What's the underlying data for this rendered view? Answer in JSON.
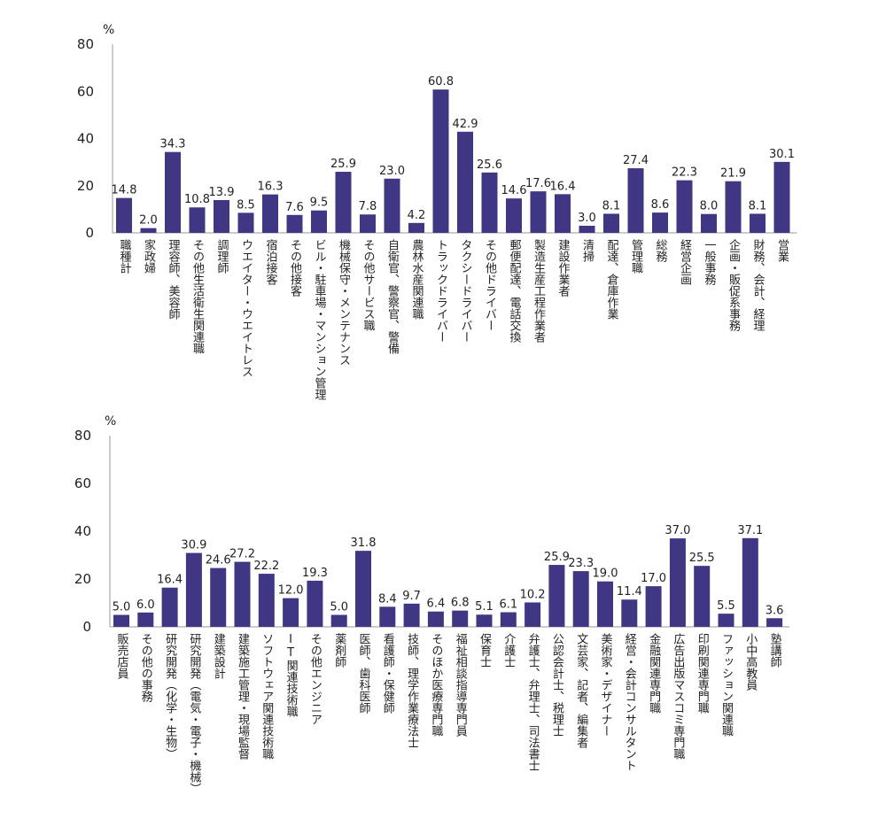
{
  "colors": {
    "bar": "#3f3783",
    "axis": "#9a9a9a",
    "text": "#222222"
  },
  "chart_data": [
    {
      "type": "bar",
      "unit_label": "%",
      "ylim": [
        0,
        80
      ],
      "yticks": [
        "0",
        "20",
        "40",
        "60",
        "80"
      ],
      "grid": false,
      "categories": [
        "職種計",
        "家政婦",
        "理容師、美容師",
        "その他生活衛生関連職",
        "調理師",
        "ウエイター・ウエイトレス",
        "宿泊接客",
        "その他接客",
        "ビル・駐車場・マンション管理",
        "機械保守・メンテナンス",
        "その他サービス職",
        "自衛官、警察官、警備",
        "農林水産関連職",
        "トラックドライバー",
        "タクシードライバー",
        "その他ドライバー",
        "郵便配達、電話交換",
        "製造生産工程作業者",
        "建設作業者",
        "清掃",
        "配達、倉庫作業",
        "管理職",
        "総務",
        "経営企画",
        "一般事務",
        "企画・販促系事務",
        "財務、会計、経理",
        "営業"
      ],
      "values": [
        14.8,
        2.0,
        34.3,
        10.8,
        13.9,
        8.5,
        16.3,
        7.6,
        9.5,
        25.9,
        7.8,
        23.0,
        4.2,
        60.8,
        42.9,
        25.6,
        14.6,
        17.6,
        16.4,
        3.0,
        8.1,
        27.4,
        8.6,
        22.3,
        8.0,
        21.9,
        8.1,
        30.1
      ],
      "value_labels": [
        "14.8",
        "2.0",
        "34.3",
        "10.8",
        "13.9",
        "8.5",
        "16.3",
        "7.6",
        "9.5",
        "25.9",
        "7.8",
        "23.0",
        "4.2",
        "60.8",
        "42.9",
        "25.6",
        "14.6",
        "17.6",
        "16.4",
        "3.0",
        "8.1",
        "27.4",
        "8.6",
        "22.3",
        "8.0",
        "21.9",
        "8.1",
        "30.1"
      ]
    },
    {
      "type": "bar",
      "unit_label": "%",
      "ylim": [
        0,
        80
      ],
      "yticks": [
        "0",
        "20",
        "40",
        "60",
        "80"
      ],
      "grid": false,
      "categories": [
        "販売店員",
        "その他の事務",
        "研究開発（化学・生物）",
        "研究開発（電気・電子・機械）",
        "建築設計",
        "建築施工管理・現場監督",
        "ソフトウェア関連技術職",
        "IT関連技術職",
        "その他エンジニア",
        "薬剤師",
        "医師、歯科医師",
        "看護師・保健師",
        "技師、理学作業療法士",
        "そのほか医療専門職",
        "福祉相談指導専門員",
        "保育士",
        "介護士",
        "弁護士、弁理士、司法書士",
        "公認会計士、税理士",
        "文芸家、記者、編集者",
        "美術家・デザイナー",
        "経営・会計コンサルタント",
        "金融関連専門職",
        "広告出版マスコミ専門職",
        "印刷関連専門職",
        "ファッション関連職",
        "小中高教員",
        "塾講師"
      ],
      "values": [
        5.0,
        6.0,
        16.4,
        30.9,
        24.6,
        27.2,
        22.2,
        12.0,
        19.3,
        5.0,
        31.8,
        8.4,
        9.7,
        6.4,
        6.8,
        5.1,
        6.1,
        10.2,
        25.9,
        23.3,
        19.0,
        11.4,
        17.0,
        37.0,
        25.5,
        5.5,
        37.1,
        3.6
      ],
      "value_labels": [
        "5.0",
        "6.0",
        "16.4",
        "30.9",
        "24.6",
        "27.2",
        "22.2",
        "12.0",
        "19.3",
        "5.0",
        "31.8",
        "8.4",
        "9.7",
        "6.4",
        "6.8",
        "5.1",
        "6.1",
        "10.2",
        "25.9",
        "23.3",
        "19.0",
        "11.4",
        "17.0",
        "37.0",
        "25.5",
        "5.5",
        "37.1",
        "3.6"
      ]
    }
  ]
}
